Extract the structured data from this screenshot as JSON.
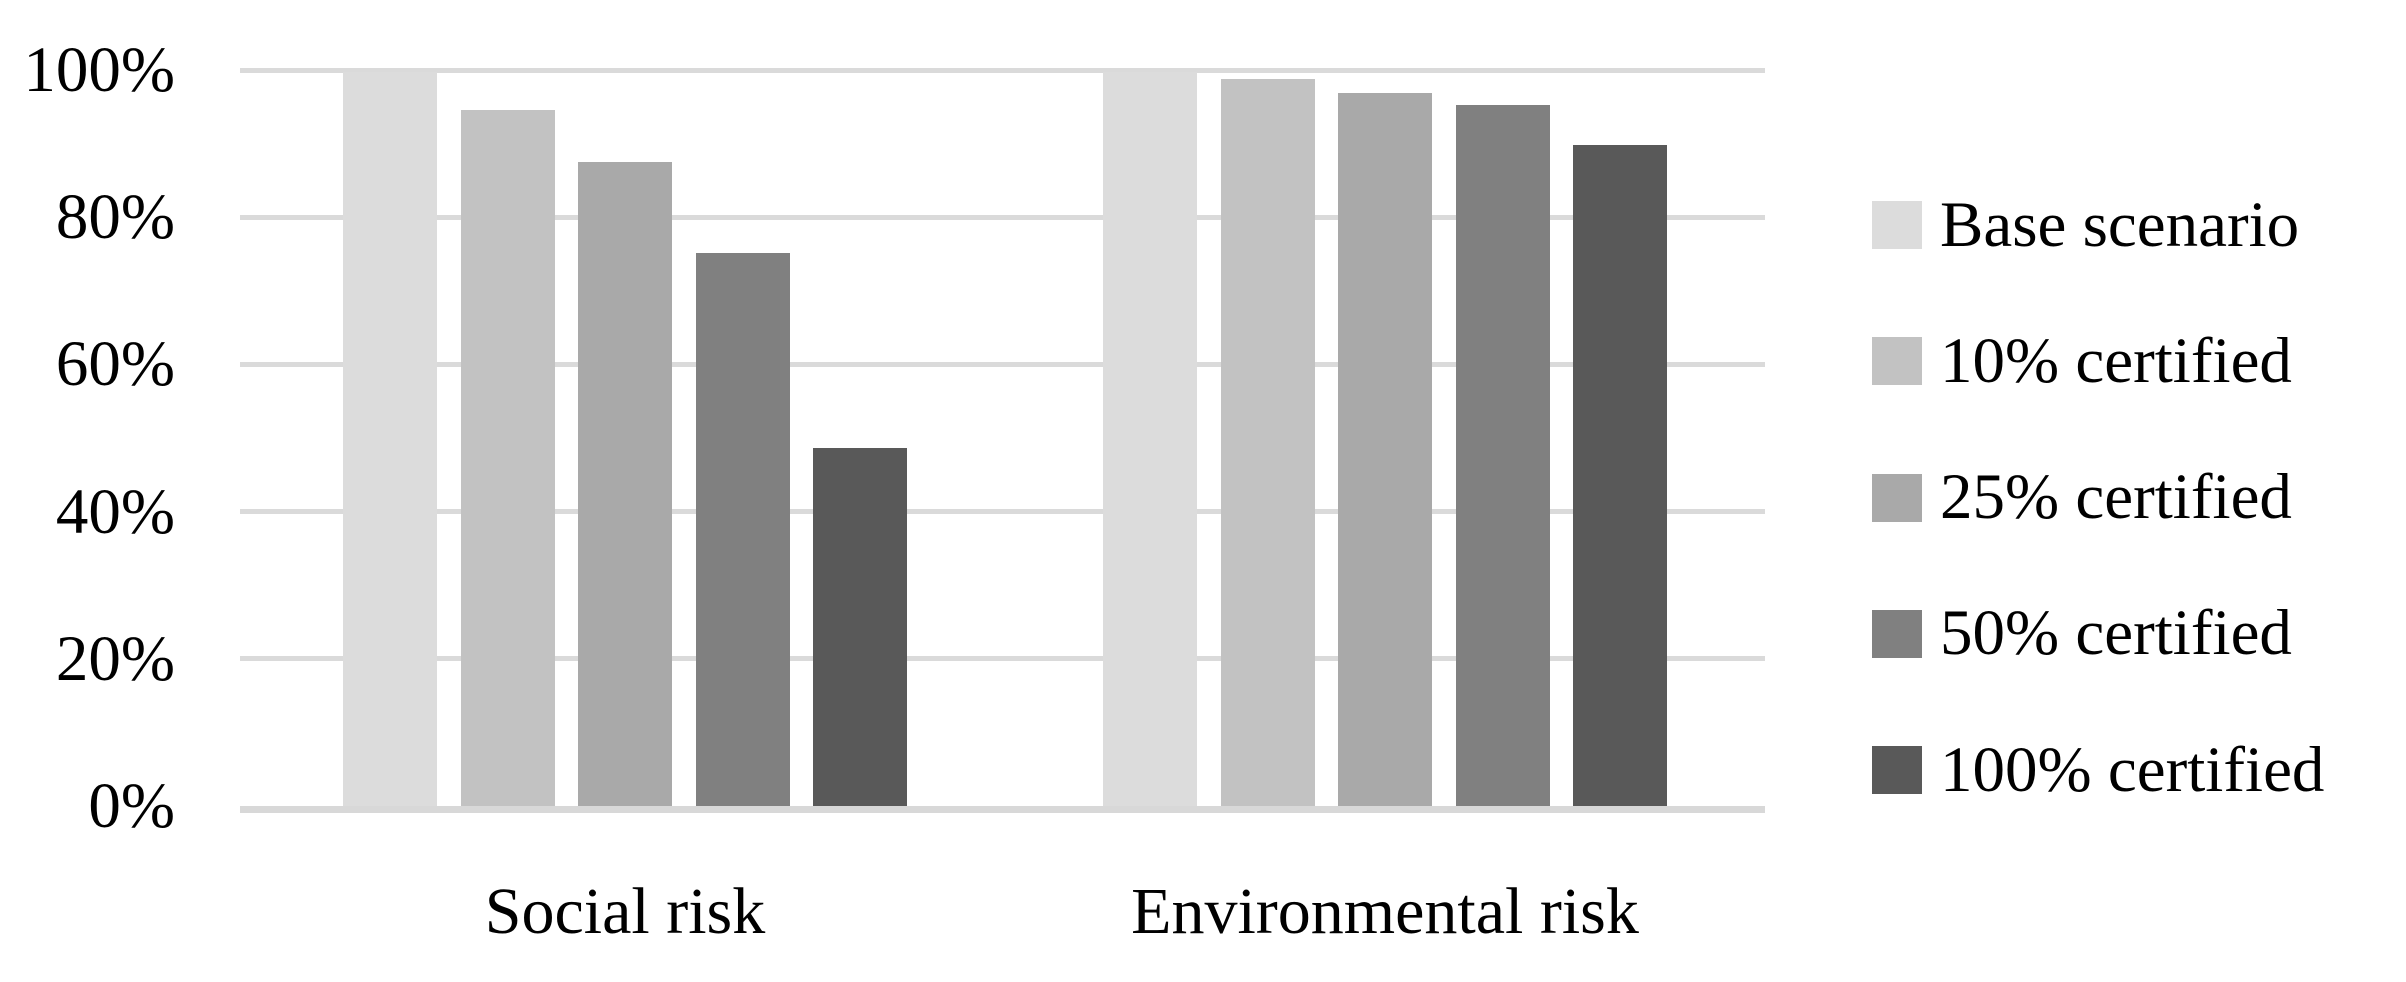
{
  "chart_data": {
    "type": "bar",
    "title": "",
    "xlabel": "",
    "ylabel": "",
    "categories": [
      "Social risk",
      "Environmental risk"
    ],
    "series": [
      {
        "name": "Base scenario",
        "color": "#dcdcdc",
        "values": [
          99.7,
          99.7
        ]
      },
      {
        "name": "10% certified",
        "color": "#c2c2c2",
        "values": [
          94.6,
          98.8
        ]
      },
      {
        "name": "25% certified",
        "color": "#a9a9a9",
        "values": [
          87.5,
          96.9
        ]
      },
      {
        "name": "50% certified",
        "color": "#808080",
        "values": [
          75.2,
          95.2
        ]
      },
      {
        "name": "100% certified",
        "color": "#595959",
        "values": [
          48.7,
          89.8
        ]
      }
    ],
    "yticks": [
      {
        "label": "0%",
        "value": 0
      },
      {
        "label": "20%",
        "value": 20
      },
      {
        "label": "40%",
        "value": 40
      },
      {
        "label": "60%",
        "value": 60
      },
      {
        "label": "80%",
        "value": 80
      },
      {
        "label": "100%",
        "value": 100
      }
    ],
    "ylim": [
      0,
      100
    ],
    "grid": "horizontal",
    "legend_position": "right",
    "background_color": "#ffffff",
    "gridline_color": "#dadada",
    "axis_line_color": "#d8d8d8",
    "text_color": "#000000"
  }
}
